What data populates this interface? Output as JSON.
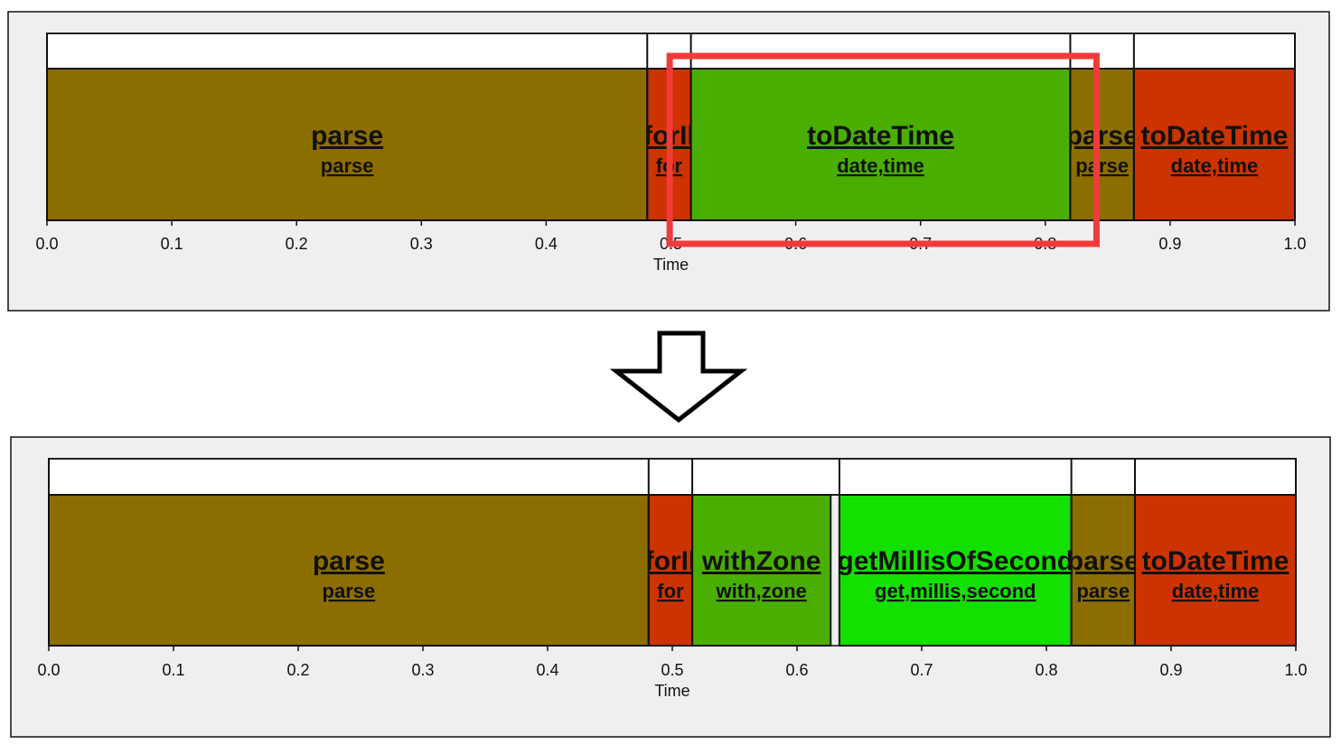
{
  "chart_data": [
    {
      "type": "bar",
      "title": "",
      "xlabel": "Time",
      "ylabel": "",
      "xlim": [
        0.0,
        1.0
      ],
      "xticks": [
        "0.0",
        "0.1",
        "0.2",
        "0.3",
        "0.4",
        "0.5",
        "0.6",
        "0.7",
        "0.8",
        "0.9",
        "1.0"
      ],
      "segments": [
        {
          "name": "parse",
          "sub": "parse",
          "start": 0.0,
          "end": 0.481,
          "color": "#8c6d00"
        },
        {
          "name": "forIl",
          "sub": "for",
          "start": 0.481,
          "end": 0.516,
          "color": "#cc3300"
        },
        {
          "name": "toDateTime",
          "sub": "date,time",
          "start": 0.516,
          "end": 0.82,
          "color": "#4aae00"
        },
        {
          "name": "parse",
          "sub": "parse",
          "start": 0.82,
          "end": 0.871,
          "color": "#8c6d00"
        },
        {
          "name": "toDateTime",
          "sub": "date,time",
          "start": 0.871,
          "end": 1.0,
          "color": "#cc3300"
        }
      ],
      "highlight": {
        "start": 0.499,
        "end": 0.841,
        "color": "#f23a3a"
      }
    },
    {
      "type": "bar",
      "title": "",
      "xlabel": "Time",
      "ylabel": "",
      "xlim": [
        0.0,
        1.0
      ],
      "xticks": [
        "0.0",
        "0.1",
        "0.2",
        "0.3",
        "0.4",
        "0.5",
        "0.6",
        "0.7",
        "0.8",
        "0.9",
        "1.0"
      ],
      "segments": [
        {
          "name": "parse",
          "sub": "parse",
          "start": 0.0,
          "end": 0.481,
          "color": "#8c6d00"
        },
        {
          "name": "forIl",
          "sub": "for",
          "start": 0.481,
          "end": 0.516,
          "color": "#cc3300"
        },
        {
          "name": "withZone",
          "sub": "with,zone",
          "start": 0.516,
          "end": 0.627,
          "color": "#4aae00"
        },
        {
          "name": "getMillisOfSecond",
          "sub": "get,millis,second",
          "start": 0.634,
          "end": 0.82,
          "color": "#14e000"
        },
        {
          "name": "parse",
          "sub": "parse",
          "start": 0.82,
          "end": 0.871,
          "color": "#8c6d00"
        },
        {
          "name": "toDateTime",
          "sub": "date,time",
          "start": 0.871,
          "end": 1.0,
          "color": "#cc3300"
        }
      ]
    }
  ]
}
